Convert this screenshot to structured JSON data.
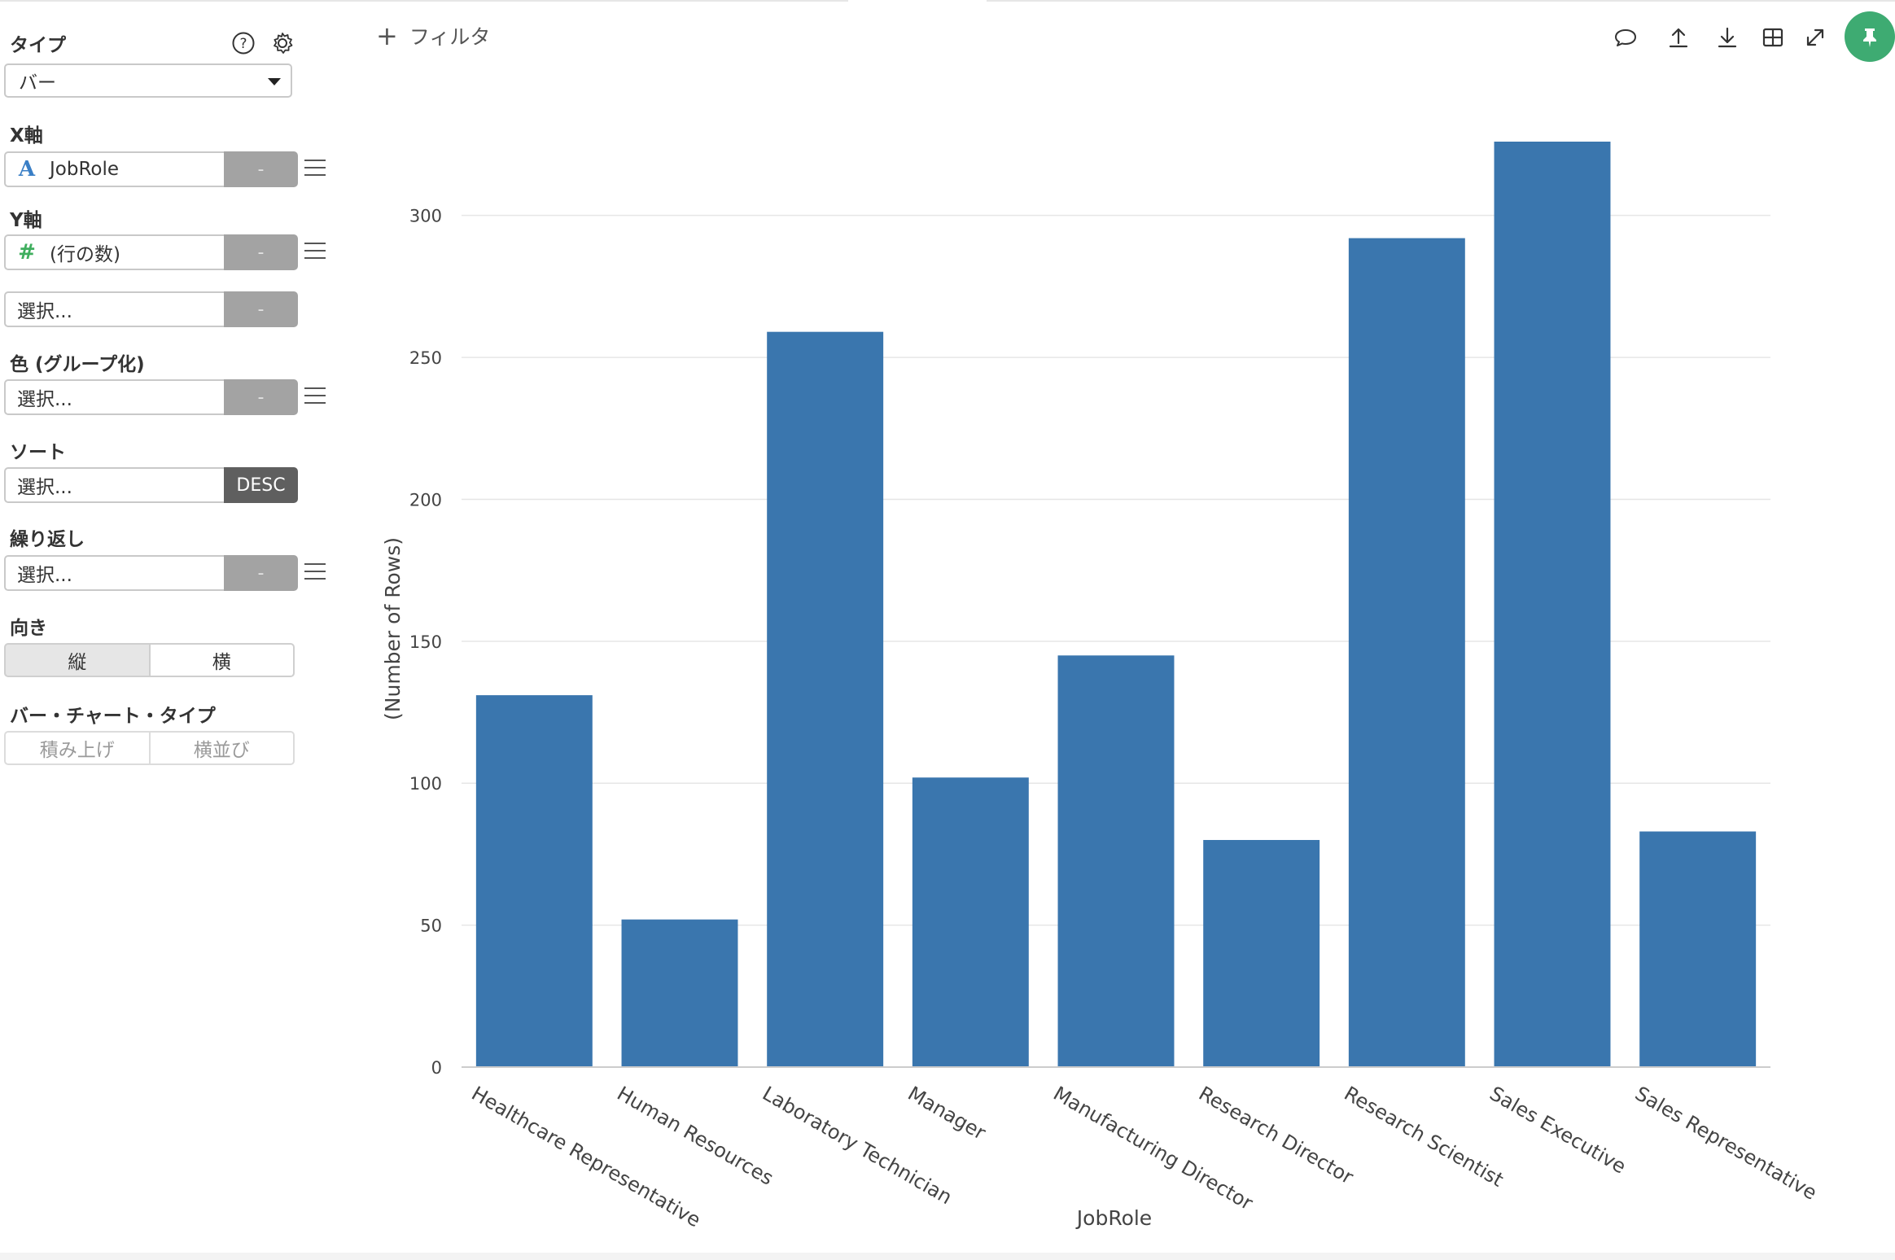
{
  "sidebar": {
    "type_label": "タイプ",
    "type_value": "バー",
    "x_axis_label": "X軸",
    "x_field": "JobRole",
    "x_btn": "-",
    "y_axis_label": "Y軸",
    "y_field": "(行の数)",
    "y_btn": "-",
    "y2_placeholder": "選択...",
    "y2_btn": "-",
    "color_label": "色 (グループ化)",
    "color_placeholder": "選択...",
    "color_btn": "-",
    "sort_label": "ソート",
    "sort_placeholder": "選択...",
    "sort_btn": "DESC",
    "repeat_label": "繰り返し",
    "repeat_placeholder": "選択...",
    "repeat_btn": "-",
    "orientation_label": "向き",
    "orientation_options": [
      "縦",
      "横"
    ],
    "orientation_selected": "縦",
    "bar_type_label": "バー・チャート・タイプ",
    "bar_type_options": [
      "積み上げ",
      "横並び"
    ]
  },
  "toolbar": {
    "filter_label": "フィルタ",
    "icons": [
      "comment-icon",
      "upload-icon",
      "download-icon",
      "table-icon",
      "expand-icon",
      "pin-icon"
    ]
  },
  "chart_data": {
    "type": "bar",
    "categories": [
      "Healthcare Representative",
      "Human Resources",
      "Laboratory Technician",
      "Manager",
      "Manufacturing Director",
      "Research Director",
      "Research Scientist",
      "Sales Executive",
      "Sales Representative"
    ],
    "values": [
      131,
      52,
      259,
      102,
      145,
      80,
      292,
      326,
      83
    ],
    "xlabel": "JobRole",
    "ylabel": "(Number of Rows)",
    "ylim": [
      0,
      326
    ],
    "yticks": [
      0,
      50,
      100,
      150,
      200,
      250,
      300
    ],
    "grid": true,
    "bar_color": "#3a76ae"
  }
}
